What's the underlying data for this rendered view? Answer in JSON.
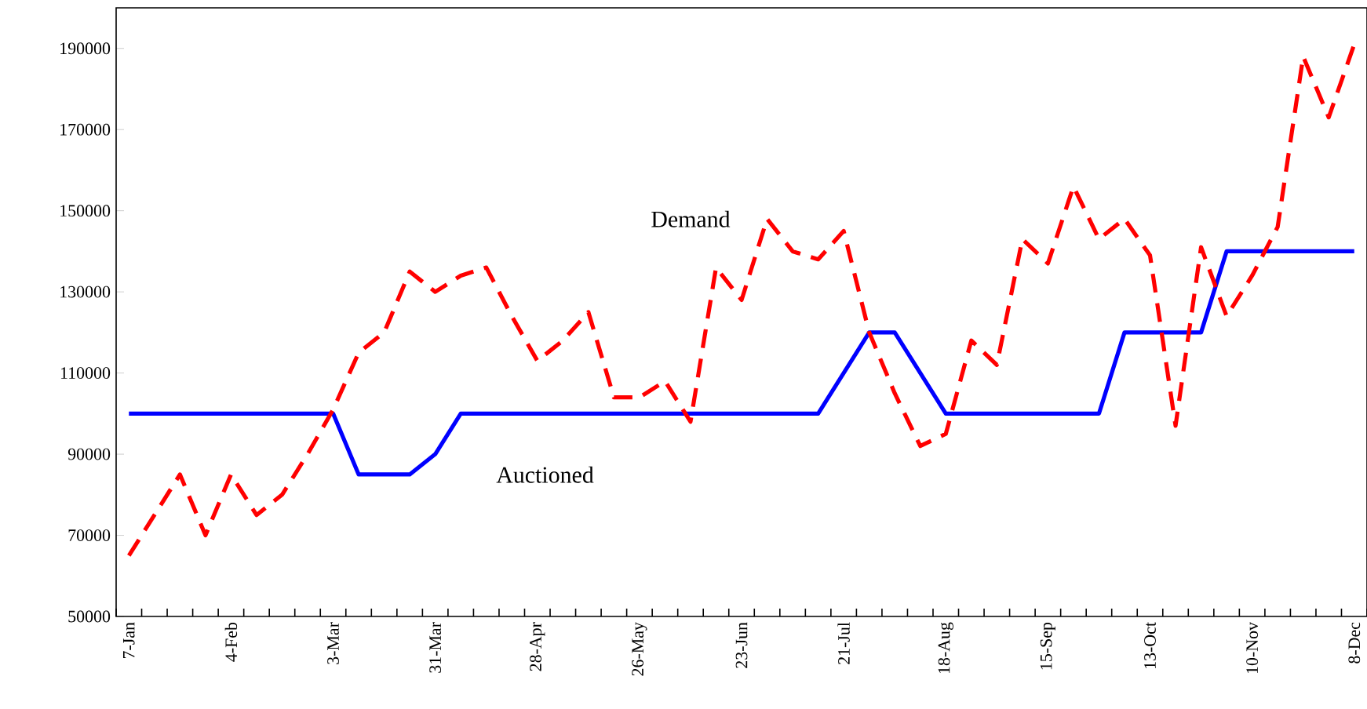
{
  "chart_data": {
    "type": "line",
    "categories": [
      "7-Jan",
      null,
      null,
      null,
      "4-Feb",
      null,
      null,
      null,
      "3-Mar",
      null,
      null,
      null,
      "31-Mar",
      null,
      null,
      null,
      "28-Apr",
      null,
      null,
      null,
      "26-May",
      null,
      null,
      null,
      "23-Jun",
      null,
      null,
      null,
      "21-Jul",
      null,
      null,
      null,
      "18-Aug",
      null,
      null,
      null,
      "15-Sep",
      null,
      null,
      null,
      "13-Oct",
      null,
      null,
      null,
      "10-Nov",
      null,
      null,
      null,
      "8-Dec"
    ],
    "series": [
      {
        "name": "Auctioned",
        "color": "#0000ff",
        "line_style": "solid",
        "values": [
          100000,
          100000,
          100000,
          100000,
          100000,
          100000,
          100000,
          100000,
          100000,
          85000,
          85000,
          85000,
          90000,
          100000,
          100000,
          100000,
          100000,
          100000,
          100000,
          100000,
          100000,
          100000,
          100000,
          100000,
          100000,
          100000,
          100000,
          100000,
          110000,
          120000,
          120000,
          110000,
          100000,
          100000,
          100000,
          100000,
          100000,
          100000,
          100000,
          120000,
          120000,
          120000,
          120000,
          140000,
          140000,
          140000,
          140000,
          140000,
          140000
        ]
      },
      {
        "name": "Demand",
        "color": "#ff0000",
        "line_style": "dashed",
        "values": [
          65000,
          75000,
          85000,
          70000,
          85000,
          75000,
          80000,
          90000,
          101000,
          115000,
          120000,
          135000,
          130000,
          134000,
          136000,
          124000,
          113000,
          118000,
          125000,
          104000,
          104000,
          108000,
          98000,
          136000,
          128000,
          148000,
          140000,
          138000,
          145000,
          120000,
          105000,
          92000,
          95000,
          118000,
          112000,
          143000,
          137000,
          156000,
          143000,
          148000,
          139000,
          97000,
          141000,
          124000,
          134000,
          146000,
          188000,
          173000,
          191000
        ]
      }
    ],
    "ylim": [
      50000,
      200000
    ],
    "yticks": [
      50000,
      70000,
      90000,
      110000,
      130000,
      150000,
      170000,
      190000
    ],
    "marker": "none"
  }
}
